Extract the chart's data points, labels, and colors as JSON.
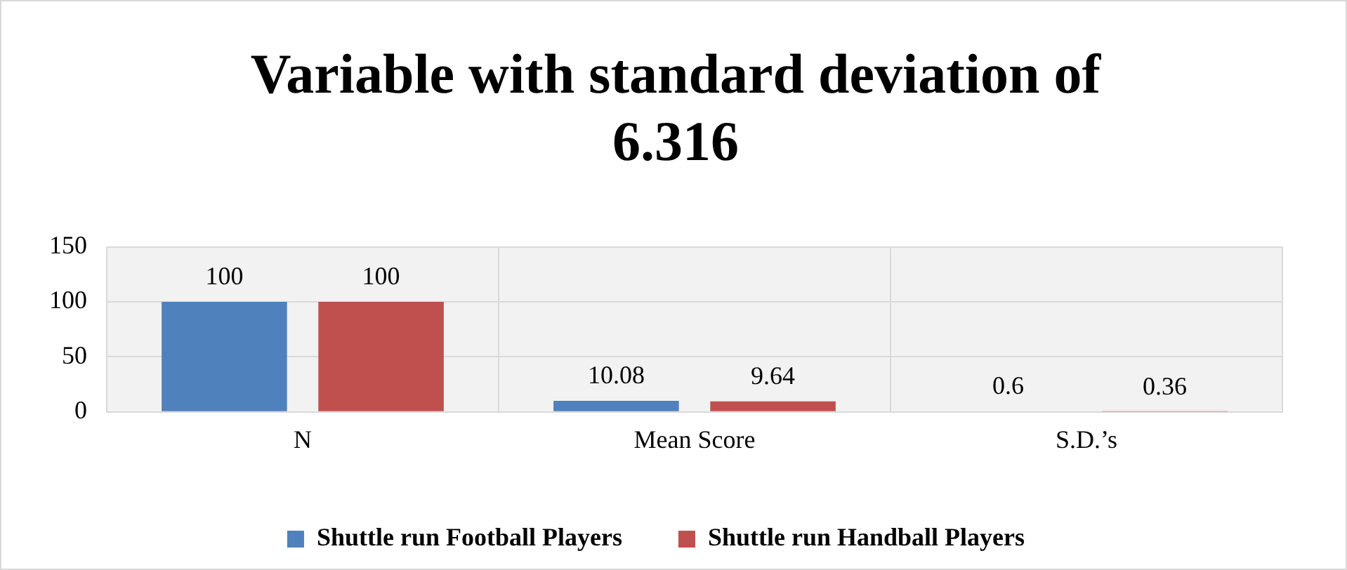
{
  "chart_data": {
    "type": "bar",
    "title": "Variable with standard deviation of 6.316",
    "categories": [
      "N",
      "Mean Score",
      "S.D.’s"
    ],
    "series": [
      {
        "name": "Shuttle run Football Players",
        "color": "#4f81bd",
        "values": [
          100,
          10.08,
          0.6
        ]
      },
      {
        "name": "Shuttle run Handball Players",
        "color": "#c0504d",
        "values": [
          100,
          9.64,
          0.36
        ]
      }
    ],
    "ylim": [
      0,
      150
    ],
    "yticks": [
      0,
      50,
      100,
      150
    ],
    "grid": true,
    "legend": "bottom",
    "data_labels": true
  }
}
